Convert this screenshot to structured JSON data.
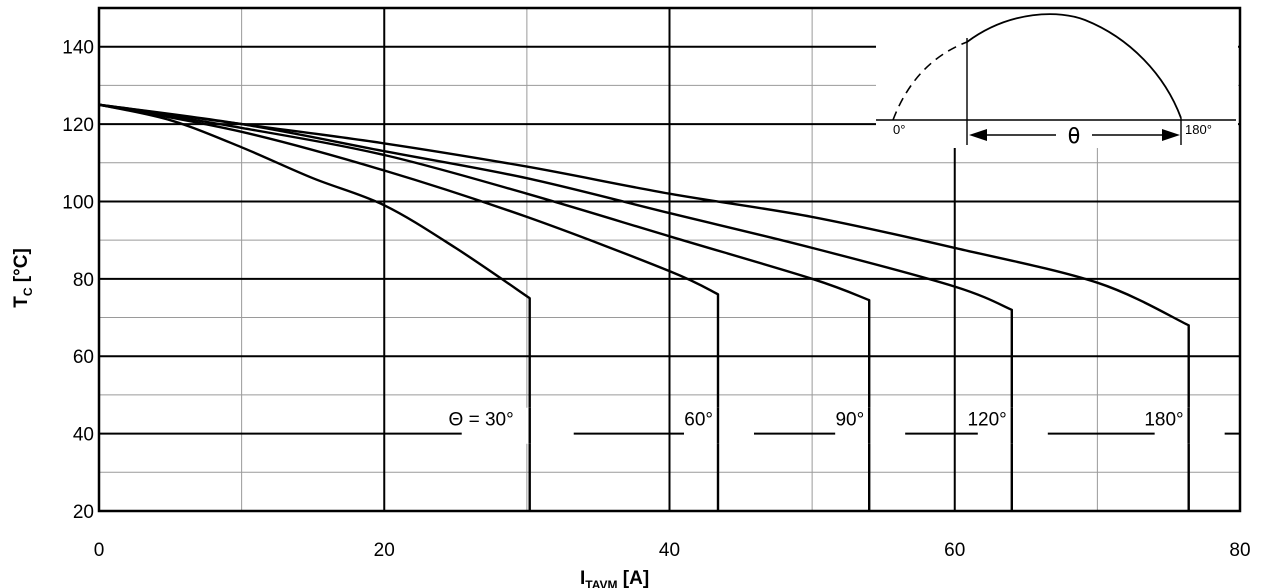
{
  "chart_data": {
    "type": "line",
    "xlabel": {
      "main": "I",
      "sub": "TAVM",
      "unit": " [A]"
    },
    "ylabel": {
      "main": "T",
      "sub": "C",
      "unit": " [°C]"
    },
    "xlim": [
      0,
      80
    ],
    "ylim": [
      20,
      150
    ],
    "xticks": [
      0,
      20,
      40,
      60,
      80
    ],
    "yticks": [
      20,
      40,
      60,
      80,
      100,
      120,
      140
    ],
    "grid": true,
    "series": [
      {
        "name": "Θ = 30°",
        "x": [
          0,
          5,
          10,
          15,
          20,
          25,
          30.2,
          30.2
        ],
        "y": [
          125,
          121,
          114,
          106,
          99,
          88,
          75,
          20
        ]
      },
      {
        "name": "60°",
        "x": [
          0,
          10,
          20,
          30,
          40,
          43.4,
          43.4
        ],
        "y": [
          125,
          118,
          108,
          96,
          82,
          76,
          20
        ]
      },
      {
        "name": "90°",
        "x": [
          0,
          10,
          20,
          30,
          40,
          50,
          54,
          54
        ],
        "y": [
          125,
          119,
          112,
          102,
          91,
          80,
          74.5,
          20
        ]
      },
      {
        "name": "120°",
        "x": [
          0,
          10,
          20,
          30,
          40,
          50,
          60,
          64,
          64
        ],
        "y": [
          125,
          120,
          113,
          106,
          97,
          88,
          78,
          72,
          20
        ]
      },
      {
        "name": "180°",
        "x": [
          0,
          10,
          20,
          30,
          40,
          50,
          60,
          70,
          76.4,
          76.4
        ],
        "y": [
          125,
          120,
          115,
          109,
          102,
          96,
          88,
          79,
          68,
          20
        ]
      }
    ],
    "annotations": {
      "inset_left_label": "0°",
      "inset_right_label": "180°",
      "inset_theta": "θ"
    }
  }
}
